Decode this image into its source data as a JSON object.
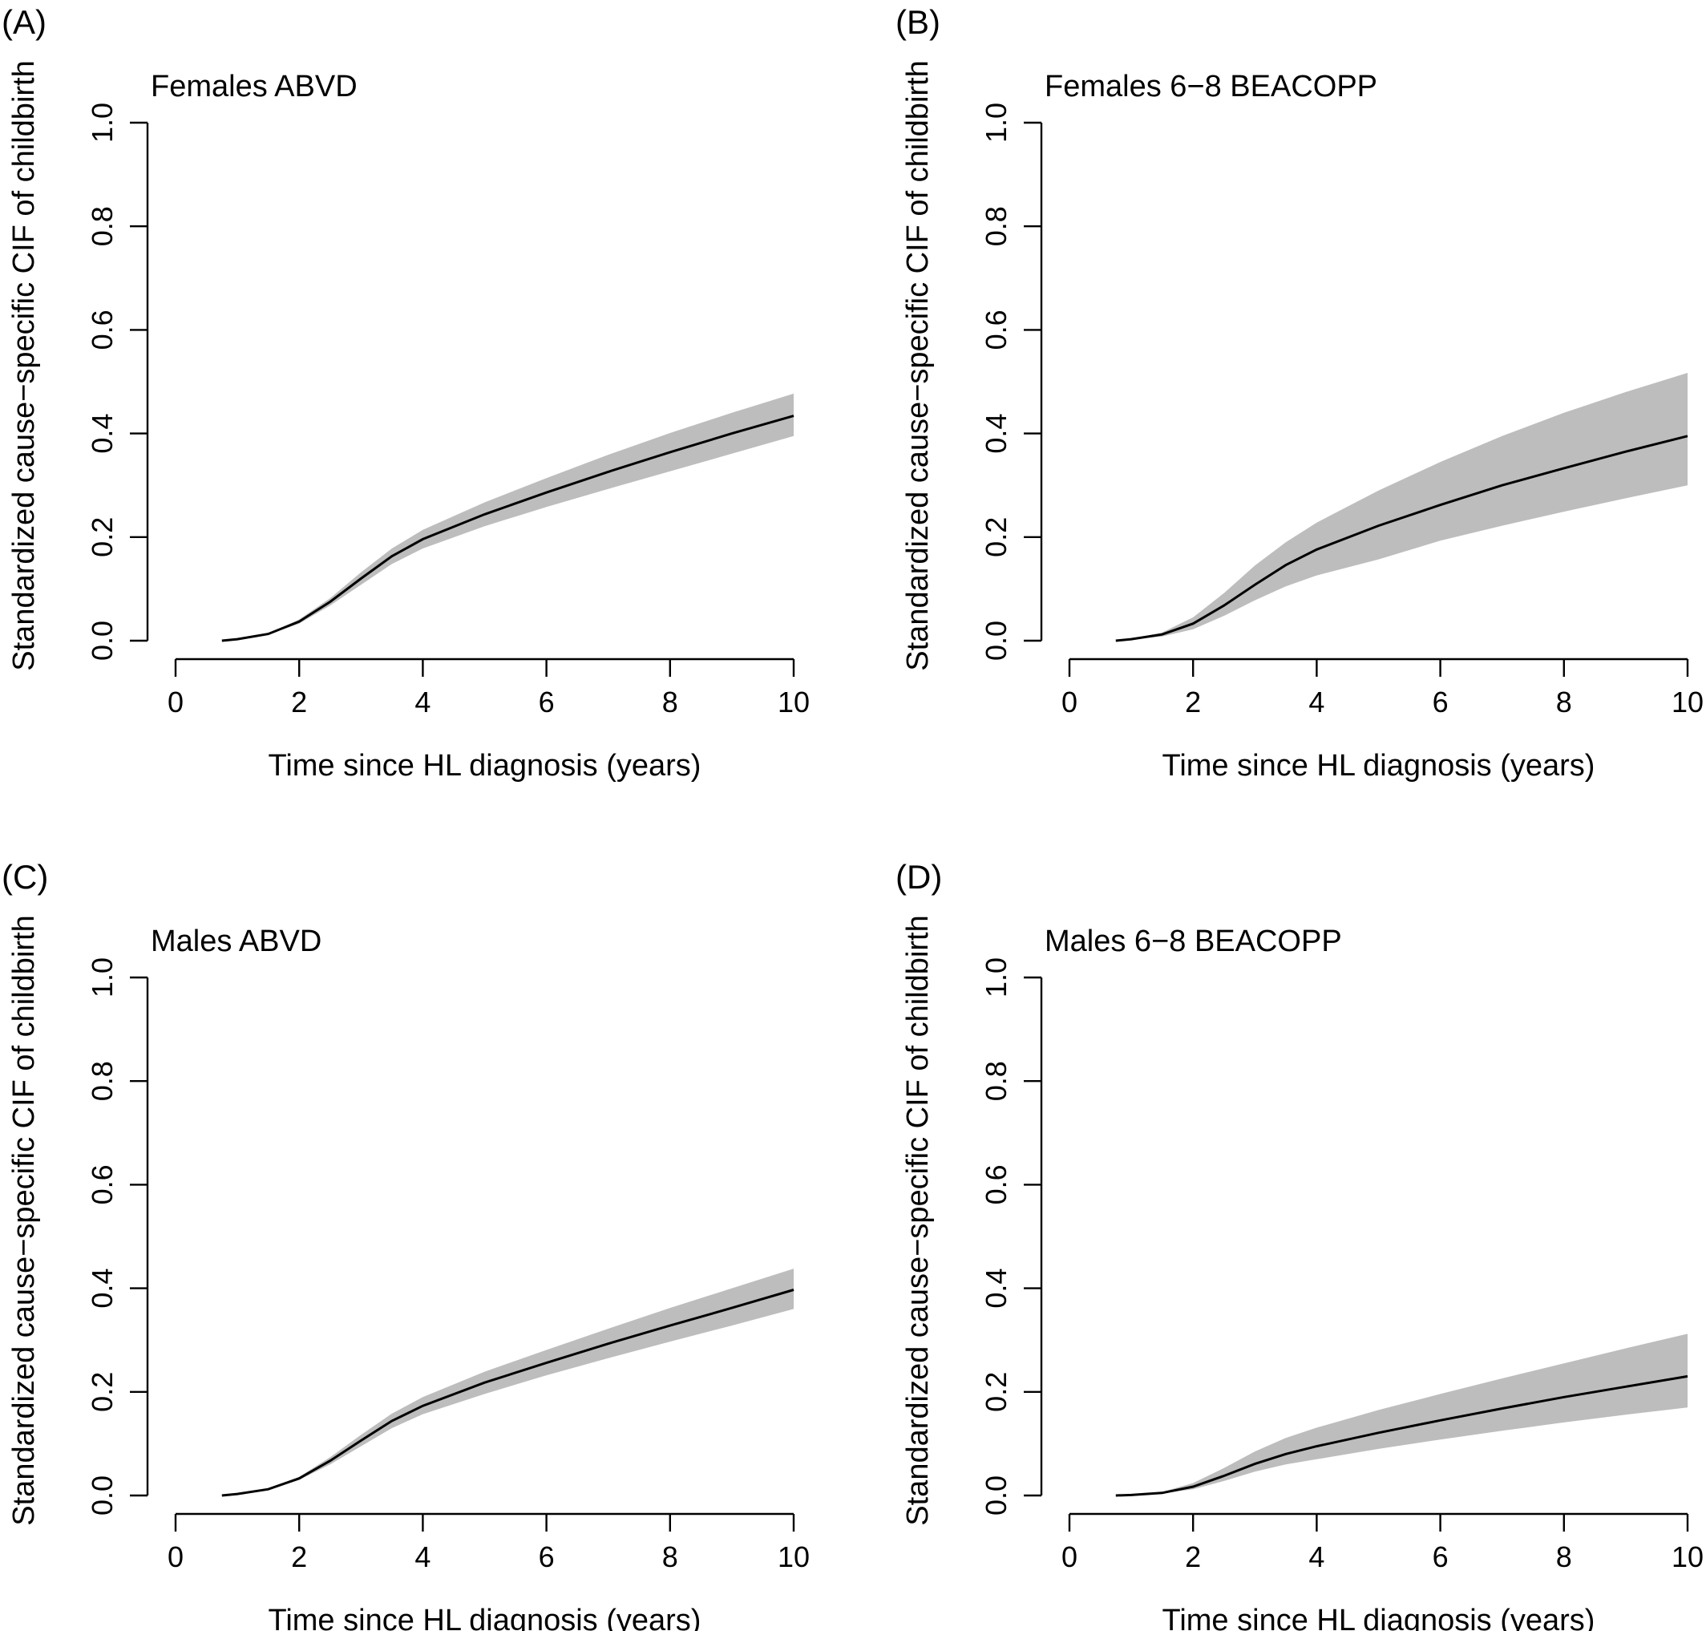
{
  "chart_data": [
    {
      "type": "area",
      "panel_label": "(A)",
      "title": "Females ABVD",
      "xlabel": "Time since HL diagnosis (years)",
      "ylabel": "Standardized cause−specific CIF of childbirth",
      "xlim": [
        0,
        10
      ],
      "ylim": [
        0,
        1
      ],
      "xticks": [
        "0",
        "2",
        "4",
        "6",
        "8",
        "10"
      ],
      "yticks": [
        "0.0",
        "0.2",
        "0.4",
        "0.6",
        "0.8",
        "1.0"
      ],
      "x": [
        0.75,
        1,
        1.5,
        2,
        2.5,
        3,
        3.5,
        4,
        5,
        6,
        7,
        8,
        9,
        10
      ],
      "series": [
        {
          "role": "estimate",
          "values": [
            0,
            0.003,
            0.013,
            0.037,
            0.075,
            0.12,
            0.163,
            0.196,
            0.244,
            0.286,
            0.326,
            0.364,
            0.4,
            0.434
          ]
        },
        {
          "role": "lower",
          "values": [
            0,
            0.003,
            0.012,
            0.033,
            0.068,
            0.108,
            0.148,
            0.178,
            0.221,
            0.258,
            0.293,
            0.327,
            0.361,
            0.395
          ]
        },
        {
          "role": "upper",
          "values": [
            0,
            0.003,
            0.014,
            0.041,
            0.082,
            0.132,
            0.178,
            0.214,
            0.267,
            0.314,
            0.359,
            0.401,
            0.44,
            0.477
          ]
        }
      ]
    },
    {
      "type": "area",
      "panel_label": "(B)",
      "title": "Females 6−8 BEACOPP",
      "xlabel": "Time since HL diagnosis (years)",
      "ylabel": "Standardized cause−specific CIF of childbirth",
      "xlim": [
        0,
        10
      ],
      "ylim": [
        0,
        1
      ],
      "xticks": [
        "0",
        "2",
        "4",
        "6",
        "8",
        "10"
      ],
      "yticks": [
        "0.0",
        "0.2",
        "0.4",
        "0.6",
        "0.8",
        "1.0"
      ],
      "x": [
        0.75,
        1,
        1.5,
        2,
        2.5,
        3,
        3.5,
        4,
        5,
        6,
        7,
        8,
        9,
        10
      ],
      "series": [
        {
          "role": "estimate",
          "values": [
            0,
            0.003,
            0.012,
            0.033,
            0.068,
            0.108,
            0.146,
            0.176,
            0.222,
            0.262,
            0.3,
            0.333,
            0.365,
            0.395
          ]
        },
        {
          "role": "lower",
          "values": [
            0,
            0.002,
            0.008,
            0.022,
            0.048,
            0.078,
            0.105,
            0.126,
            0.157,
            0.193,
            0.222,
            0.249,
            0.275,
            0.3
          ]
        },
        {
          "role": "upper",
          "values": [
            0,
            0.004,
            0.016,
            0.045,
            0.092,
            0.145,
            0.19,
            0.228,
            0.29,
            0.345,
            0.395,
            0.44,
            0.48,
            0.517
          ]
        }
      ]
    },
    {
      "type": "area",
      "panel_label": "(C)",
      "title": "Males ABVD",
      "xlabel": "Time since HL diagnosis (years)",
      "ylabel": "Standardized cause−specific CIF of childbirth",
      "xlim": [
        0,
        10
      ],
      "ylim": [
        0,
        1
      ],
      "xticks": [
        "0",
        "2",
        "4",
        "6",
        "8",
        "10"
      ],
      "yticks": [
        "0.0",
        "0.2",
        "0.4",
        "0.6",
        "0.8",
        "1.0"
      ],
      "x": [
        0.75,
        1,
        1.5,
        2,
        2.5,
        3,
        3.5,
        4,
        5,
        6,
        7,
        8,
        9,
        10
      ],
      "series": [
        {
          "role": "estimate",
          "values": [
            0,
            0.003,
            0.012,
            0.033,
            0.067,
            0.106,
            0.144,
            0.173,
            0.218,
            0.256,
            0.293,
            0.328,
            0.362,
            0.397
          ]
        },
        {
          "role": "lower",
          "values": [
            0,
            0.003,
            0.011,
            0.03,
            0.06,
            0.095,
            0.13,
            0.157,
            0.196,
            0.232,
            0.265,
            0.297,
            0.328,
            0.36
          ]
        },
        {
          "role": "upper",
          "values": [
            0,
            0.003,
            0.013,
            0.036,
            0.074,
            0.117,
            0.158,
            0.19,
            0.239,
            0.281,
            0.322,
            0.362,
            0.4,
            0.438
          ]
        }
      ]
    },
    {
      "type": "area",
      "panel_label": "(D)",
      "title": "Males 6−8 BEACOPP",
      "xlabel": "Time since HL diagnosis (years)",
      "ylabel": "Standardized cause−specific CIF of childbirth",
      "xlim": [
        0,
        10
      ],
      "ylim": [
        0,
        1
      ],
      "xticks": [
        "0",
        "2",
        "4",
        "6",
        "8",
        "10"
      ],
      "yticks": [
        "0.0",
        "0.2",
        "0.4",
        "0.6",
        "0.8",
        "1.0"
      ],
      "x": [
        0.75,
        1,
        1.5,
        2,
        2.5,
        3,
        3.5,
        4,
        5,
        6,
        7,
        8,
        9,
        10
      ],
      "series": [
        {
          "role": "estimate",
          "values": [
            0,
            0.001,
            0.005,
            0.017,
            0.038,
            0.061,
            0.08,
            0.095,
            0.121,
            0.145,
            0.168,
            0.19,
            0.21,
            0.23
          ]
        },
        {
          "role": "lower",
          "values": [
            0,
            0.001,
            0.004,
            0.012,
            0.028,
            0.046,
            0.06,
            0.07,
            0.09,
            0.108,
            0.125,
            0.141,
            0.156,
            0.17
          ]
        },
        {
          "role": "upper",
          "values": [
            0,
            0.002,
            0.007,
            0.024,
            0.053,
            0.085,
            0.111,
            0.131,
            0.165,
            0.196,
            0.226,
            0.255,
            0.284,
            0.312
          ]
        }
      ]
    }
  ]
}
